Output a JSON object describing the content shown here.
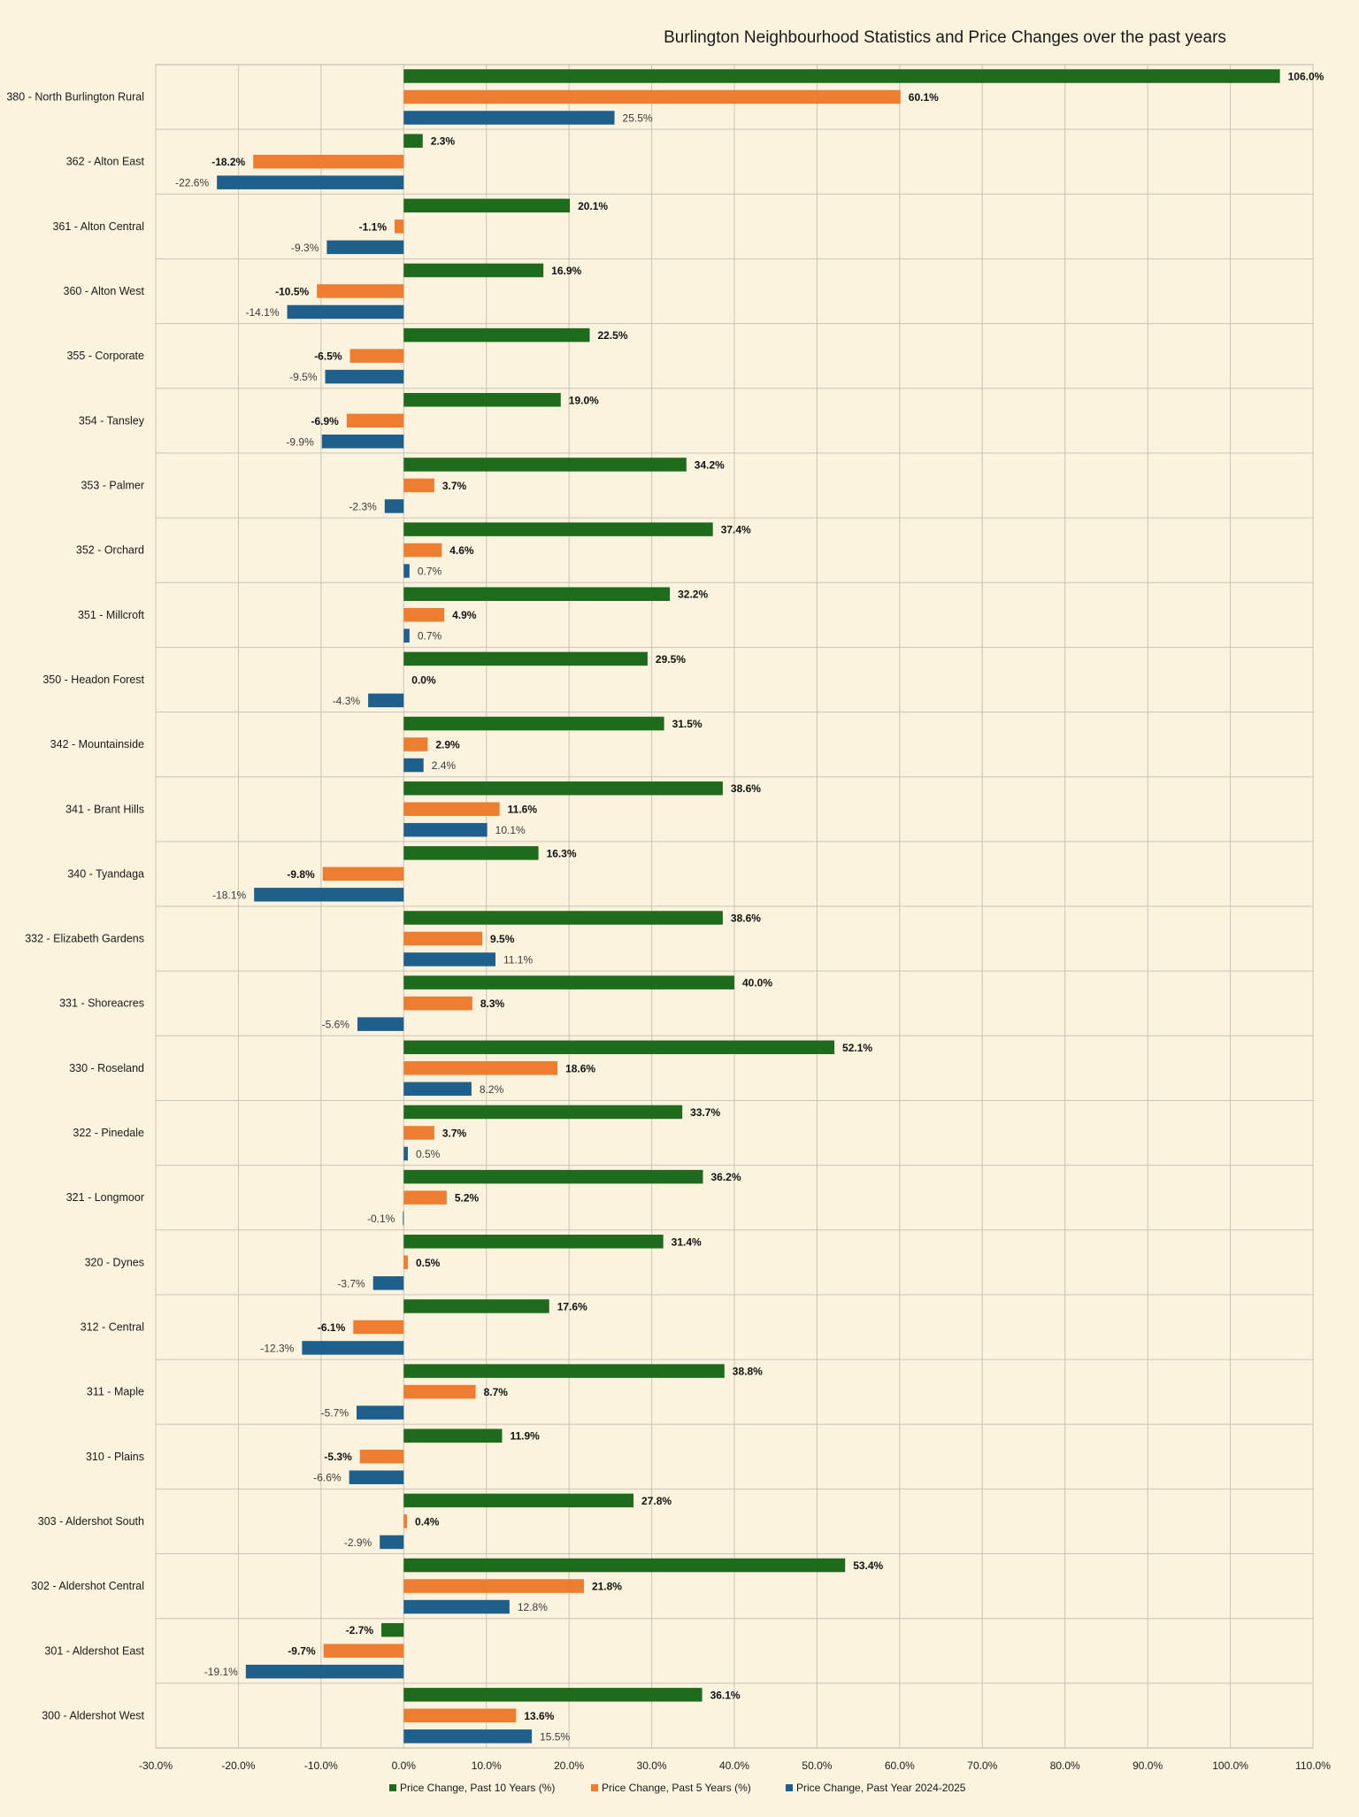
{
  "chart_data": {
    "type": "bar",
    "orientation": "horizontal",
    "title": "Burlington Neighbourhood Statistics and Price Changes over the past years",
    "xlabel": "",
    "ylabel": "",
    "xlim": [
      -30,
      110
    ],
    "x_ticks": [
      -30,
      -20,
      -10,
      0,
      10,
      20,
      30,
      40,
      50,
      60,
      70,
      80,
      90,
      100,
      110
    ],
    "tick_labels": [
      "-30.0%",
      "-20.0%",
      "-10.0%",
      "0.0%",
      "10.0%",
      "20.0%",
      "30.0%",
      "40.0%",
      "50.0%",
      "60.0%",
      "70.0%",
      "80.0%",
      "90.0%",
      "100.0%",
      "110.0%"
    ],
    "grid": true,
    "legend_position": "bottom",
    "categories": [
      "380 - North Burlington Rural",
      "362 - Alton East",
      "361 - Alton Central",
      "360 - Alton West",
      "355 - Corporate",
      "354 - Tansley",
      "353 - Palmer",
      "352 - Orchard",
      "351 - Millcroft",
      "350 - Headon Forest",
      "342 - Mountainside",
      "341 - Brant Hills",
      "340 - Tyandaga",
      "332 - Elizabeth Gardens",
      "331 - Shoreacres",
      "330 - Roseland",
      "322 - Pinedale",
      "321 - Longmoor",
      "320 - Dynes",
      "312 - Central",
      "311 - Maple",
      "310 - Plains",
      "303 - Aldershot South",
      "302 - Aldershot Central",
      "301 - Aldershot East",
      "300 - Aldershot West"
    ],
    "series": [
      {
        "name": "Price Change, Past 10 Years (%)",
        "color": "#1e6b1e",
        "values": [
          106.0,
          2.3,
          20.1,
          16.9,
          22.5,
          19.0,
          34.2,
          37.4,
          32.2,
          29.5,
          31.5,
          38.6,
          16.3,
          38.6,
          40.0,
          52.1,
          33.7,
          36.2,
          31.4,
          17.6,
          38.8,
          11.9,
          27.8,
          53.4,
          -2.7,
          36.1
        ],
        "labels": [
          "106.0%",
          "2.3%",
          "20.1%",
          "16.9%",
          "22.5%",
          "19.0%",
          "34.2%",
          "37.4%",
          "32.2%",
          "29.5%",
          "31.5%",
          "38.6%",
          "16.3%",
          "38.6%",
          "40.0%",
          "52.1%",
          "33.7%",
          "36.2%",
          "31.4%",
          "17.6%",
          "38.8%",
          "11.9%",
          "27.8%",
          "53.4%",
          "-2.7%",
          "36.1%"
        ]
      },
      {
        "name": "Price Change, Past 5 Years (%)",
        "color": "#ed7d31",
        "values": [
          60.1,
          -18.2,
          -1.1,
          -10.5,
          -6.5,
          -6.9,
          3.7,
          4.6,
          4.9,
          0.0,
          2.9,
          11.6,
          -9.8,
          9.5,
          8.3,
          18.6,
          3.7,
          5.2,
          0.5,
          -6.1,
          8.7,
          -5.3,
          0.4,
          21.8,
          -9.7,
          13.6
        ],
        "labels": [
          "60.1%",
          "-18.2%",
          "-1.1%",
          "-10.5%",
          "-6.5%",
          "-6.9%",
          "3.7%",
          "4.6%",
          "4.9%",
          "0.0%",
          "2.9%",
          "11.6%",
          "-9.8%",
          "9.5%",
          "8.3%",
          "18.6%",
          "3.7%",
          "5.2%",
          "0.5%",
          "-6.1%",
          "8.7%",
          "-5.3%",
          "0.4%",
          "21.8%",
          "-9.7%",
          "13.6%"
        ]
      },
      {
        "name": "Price Change, Past Year 2024-2025",
        "color": "#1f5f8b",
        "values": [
          25.5,
          -22.6,
          -9.3,
          -14.1,
          -9.5,
          -9.9,
          -2.3,
          0.7,
          0.7,
          -4.3,
          2.4,
          10.1,
          -18.1,
          11.1,
          -5.6,
          8.2,
          0.5,
          -0.1,
          -3.7,
          -12.3,
          -5.7,
          -6.6,
          -2.9,
          12.8,
          -19.1,
          15.5
        ],
        "labels": [
          "25.5%",
          "-22.6%",
          "-9.3%",
          "-14.1%",
          "-9.5%",
          "-9.9%",
          "-2.3%",
          "0.7%",
          "0.7%",
          "-4.3%",
          "2.4%",
          "10.1%",
          "-18.1%",
          "11.1%",
          "-5.6%",
          "8.2%",
          "0.5%",
          "-0.1%",
          "-3.7%",
          "-12.3%",
          "-5.7%",
          "-6.6%",
          "-2.9%",
          "12.8%",
          "-19.1%",
          "15.5%"
        ]
      }
    ]
  }
}
